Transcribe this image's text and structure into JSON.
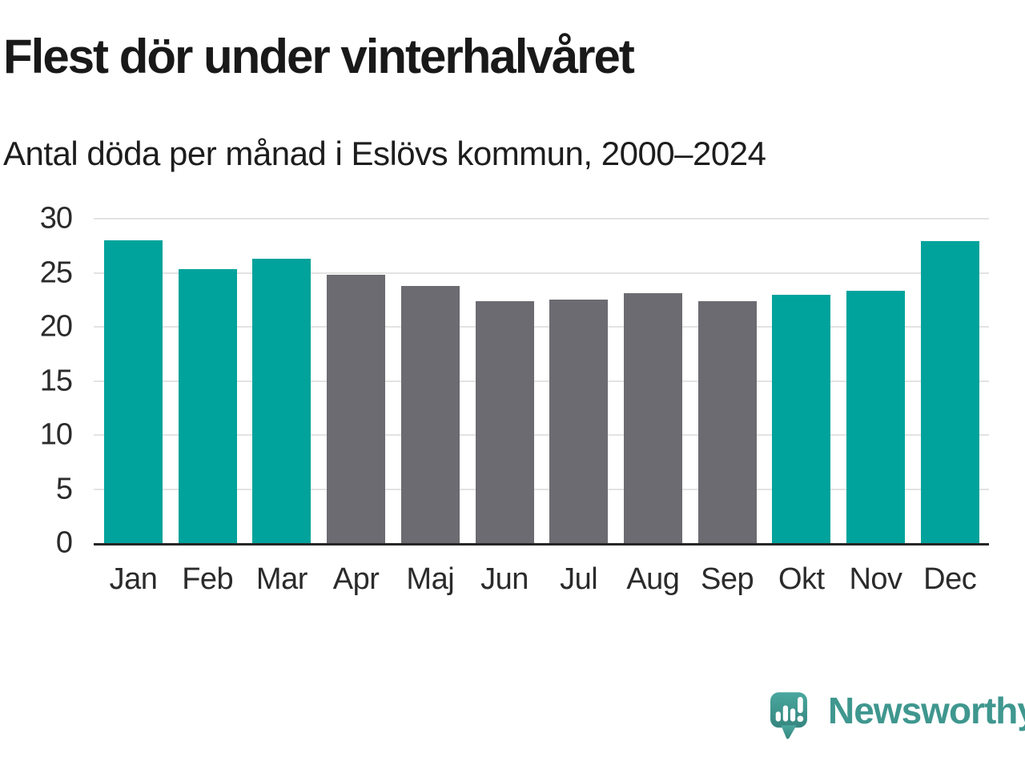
{
  "header": {
    "title": "Flest dör under vinterhalvåret",
    "subtitle": "Antal döda per månad i Eslövs kommun, 2000–2024"
  },
  "chart_data": {
    "type": "bar",
    "title": "Flest dör under vinterhalvåret",
    "subtitle": "Antal döda per månad i Eslövs kommun, 2000–2024",
    "categories": [
      "Jan",
      "Feb",
      "Mar",
      "Apr",
      "Maj",
      "Jun",
      "Jul",
      "Aug",
      "Sep",
      "Okt",
      "Nov",
      "Dec"
    ],
    "values": [
      28.0,
      25.3,
      26.3,
      24.8,
      23.8,
      22.4,
      22.5,
      23.1,
      22.4,
      23.0,
      23.3,
      27.9
    ],
    "highlight_months": [
      "Jan",
      "Feb",
      "Mar",
      "Okt",
      "Nov",
      "Dec"
    ],
    "colors": {
      "highlight": "#00a39c",
      "base": "#6b6b71",
      "grid": "#e3e3e3",
      "axis": "#262626"
    },
    "xlabel": "",
    "ylabel": "",
    "yticks": [
      0,
      5,
      10,
      15,
      20,
      25,
      30
    ],
    "ylim": [
      0,
      30
    ],
    "grid": "horizontal",
    "legend": "none"
  },
  "footer": {
    "brand": "Newsworthy",
    "brand_color": "#3f978f"
  }
}
